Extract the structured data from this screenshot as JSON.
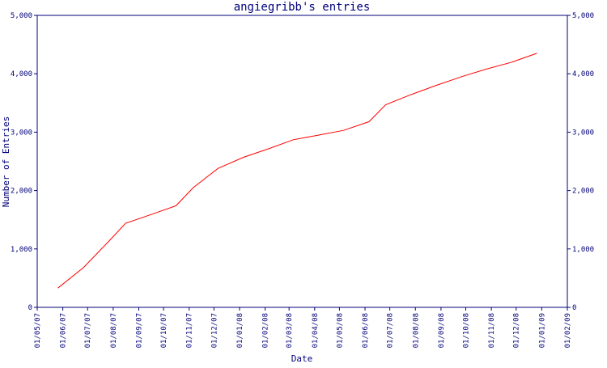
{
  "chart_data": {
    "type": "line",
    "title": "angiegribb's entries",
    "xlabel": "Date",
    "ylabel": "Number of Entries",
    "ylim": [
      0,
      5000
    ],
    "xlim": [
      "2007-05-01",
      "2009-02-01"
    ],
    "y_ticks": [
      0,
      1000,
      2000,
      3000,
      4000,
      5000
    ],
    "y_tick_labels": [
      "0",
      "1,000",
      "2,000",
      "3,000",
      "4,000",
      "5,000"
    ],
    "x_ticks": [
      "2007-05-01",
      "2007-06-01",
      "2007-07-01",
      "2007-08-01",
      "2007-09-01",
      "2007-10-01",
      "2007-11-01",
      "2007-12-01",
      "2008-01-01",
      "2008-02-01",
      "2008-03-01",
      "2008-04-01",
      "2008-05-01",
      "2008-06-01",
      "2008-07-01",
      "2008-08-01",
      "2008-09-01",
      "2008-10-01",
      "2008-11-01",
      "2008-12-01",
      "2009-01-01",
      "2009-02-01"
    ],
    "x_tick_labels": [
      "01/05/07",
      "01/06/07",
      "01/07/07",
      "01/08/07",
      "01/09/07",
      "01/10/07",
      "01/11/07",
      "01/12/07",
      "01/01/08",
      "01/02/08",
      "01/03/08",
      "01/04/08",
      "01/05/08",
      "01/06/08",
      "01/07/08",
      "01/08/08",
      "01/09/08",
      "01/10/08",
      "01/11/08",
      "01/12/08",
      "01/01/09",
      "01/02/09"
    ],
    "grid": false,
    "series": [
      {
        "color": "#ff0000",
        "points": [
          {
            "x": "2007-05-26",
            "y": 330
          },
          {
            "x": "2007-06-26",
            "y": 680
          },
          {
            "x": "2007-07-26",
            "y": 1120
          },
          {
            "x": "2007-08-16",
            "y": 1440
          },
          {
            "x": "2007-09-16",
            "y": 1590
          },
          {
            "x": "2007-10-16",
            "y": 1740
          },
          {
            "x": "2007-11-06",
            "y": 2050
          },
          {
            "x": "2007-12-06",
            "y": 2380
          },
          {
            "x": "2008-01-06",
            "y": 2570
          },
          {
            "x": "2008-02-06",
            "y": 2720
          },
          {
            "x": "2008-03-06",
            "y": 2870
          },
          {
            "x": "2008-04-06",
            "y": 2950
          },
          {
            "x": "2008-05-06",
            "y": 3030
          },
          {
            "x": "2008-06-06",
            "y": 3180
          },
          {
            "x": "2008-06-26",
            "y": 3470
          },
          {
            "x": "2008-07-26",
            "y": 3640
          },
          {
            "x": "2008-08-26",
            "y": 3800
          },
          {
            "x": "2008-09-26",
            "y": 3950
          },
          {
            "x": "2008-10-26",
            "y": 4080
          },
          {
            "x": "2008-11-26",
            "y": 4200
          },
          {
            "x": "2008-12-26",
            "y": 4350
          }
        ]
      }
    ]
  }
}
